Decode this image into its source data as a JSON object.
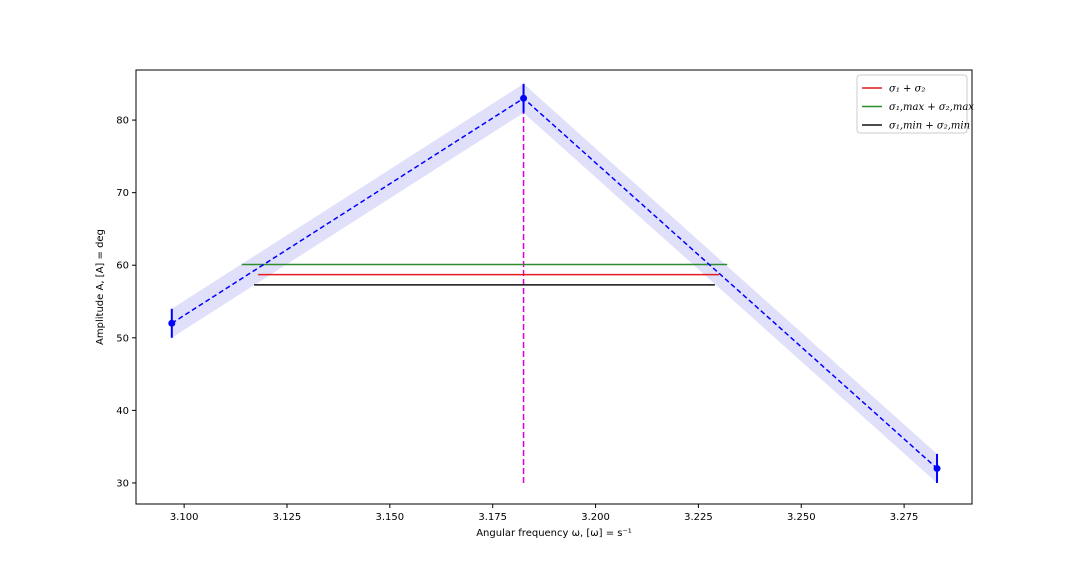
{
  "chart_data": {
    "type": "line",
    "xlabel": "Angular frequency ω, [ω] = s⁻¹",
    "ylabel": "Amplitude A, [A] = deg",
    "xlim": [
      3.0883,
      3.2915
    ],
    "ylim": [
      27.1,
      86.9
    ],
    "xticks": [
      3.1,
      3.125,
      3.15,
      3.175,
      3.2,
      3.225,
      3.25,
      3.275
    ],
    "xtick_labels": [
      "3.100",
      "3.125",
      "3.150",
      "3.175",
      "3.200",
      "3.225",
      "3.250",
      "3.275"
    ],
    "yticks": [
      30,
      40,
      50,
      60,
      70,
      80
    ],
    "ytick_labels": [
      "30",
      "40",
      "50",
      "60",
      "70",
      "80"
    ],
    "grid": false,
    "legend_position": "top-right",
    "data_series": {
      "x": [
        3.097,
        3.1825,
        3.283
      ],
      "y": [
        52,
        83,
        32
      ],
      "yerr": [
        2,
        2,
        2
      ],
      "band_halfwidth": 2,
      "color": "#0000ff",
      "band_color": "#e0e0fb"
    },
    "resonance_line": {
      "x": 3.1825,
      "y_from": 30,
      "y_to": 83,
      "color": "#dd00dd"
    },
    "series": [
      {
        "name": "σ₁ + σ₂",
        "x_from": 3.118,
        "x_to": 3.23,
        "y": 58.7,
        "color": "#e41a1c"
      },
      {
        "name": "σ₁,max + σ₂,max",
        "x_from": 3.114,
        "x_to": 3.232,
        "y": 60.1,
        "color": "#2e8b2e"
      },
      {
        "name": "σ₁,min + σ₂,min",
        "x_from": 3.117,
        "x_to": 3.229,
        "y": 57.3,
        "color": "#111111"
      }
    ]
  }
}
